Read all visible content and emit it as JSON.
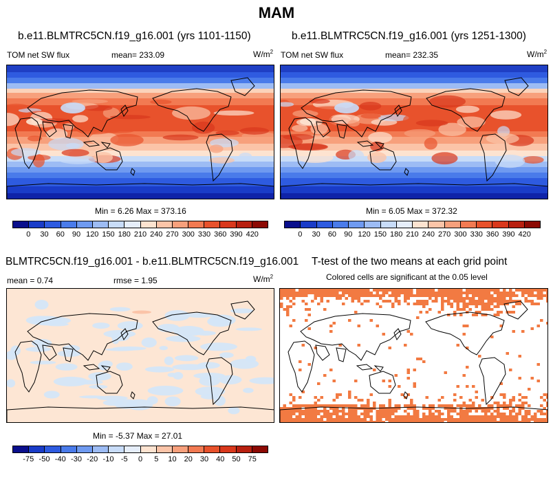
{
  "title": "MAM",
  "panels": [
    {
      "title": "b.e11.BLMTRC5CN.f19_g16.001 (yrs 1101-1150)",
      "left_label": "TOM net SW flux",
      "center_label": "mean= 233.09",
      "units": "W/m",
      "units_sup": "2",
      "min_max": "Min =   6.26 Max = 373.16"
    },
    {
      "title": "b.e11.BLMTRC5CN.f19_g16.001 (yrs 1251-1300)",
      "left_label": "TOM net SW flux",
      "center_label": "mean= 232.35",
      "units": "W/m",
      "units_sup": "2",
      "min_max": "Min =   6.05 Max = 372.32"
    },
    {
      "title": "BLMTRC5CN.f19_g16.001 - b.e11.BLMTRC5CN.f19_g16.001",
      "left_label": "mean =   0.74",
      "center_label": "rmse =   1.95",
      "units": "W/m",
      "units_sup": "2",
      "min_max": "Min =  -5.37 Max =  27.01"
    },
    {
      "title": "T-test of the two means at each grid point",
      "subtitle": "Colored cells are significant at the 0.05 level"
    }
  ],
  "colorbar_abs": {
    "colors": [
      "#0a0f8c",
      "#1a3cc8",
      "#2e5be0",
      "#4a7bea",
      "#6f9af0",
      "#9dbcf4",
      "#c8dcf8",
      "#e6eefa",
      "#fde3d0",
      "#fbc4a8",
      "#f7a07c",
      "#f27a52",
      "#e8522c",
      "#d9381c",
      "#b82010",
      "#8c0a04"
    ],
    "labels": [
      "0",
      "30",
      "60",
      "90",
      "120",
      "150",
      "180",
      "210",
      "240",
      "270",
      "300",
      "330",
      "360",
      "390",
      "420"
    ]
  },
  "colorbar_diff": {
    "colors": [
      "#0a0f8c",
      "#1a3cc8",
      "#2e5be0",
      "#4a7bea",
      "#6f9af0",
      "#9dbcf4",
      "#c8dcf8",
      "#e6eefa",
      "#fde3d0",
      "#fbc4a8",
      "#f7a07c",
      "#f27a52",
      "#e8522c",
      "#d9381c",
      "#b82010",
      "#8c0a04"
    ],
    "labels": [
      "-75",
      "-50",
      "-40",
      "-30",
      "-20",
      "-10",
      "-5",
      "0",
      "5",
      "10",
      "20",
      "30",
      "40",
      "50",
      "75"
    ]
  },
  "colors": {
    "significant": "#f27a42",
    "diff_pos": "#fde6d4",
    "diff_neg": "#d4e6f8"
  }
}
